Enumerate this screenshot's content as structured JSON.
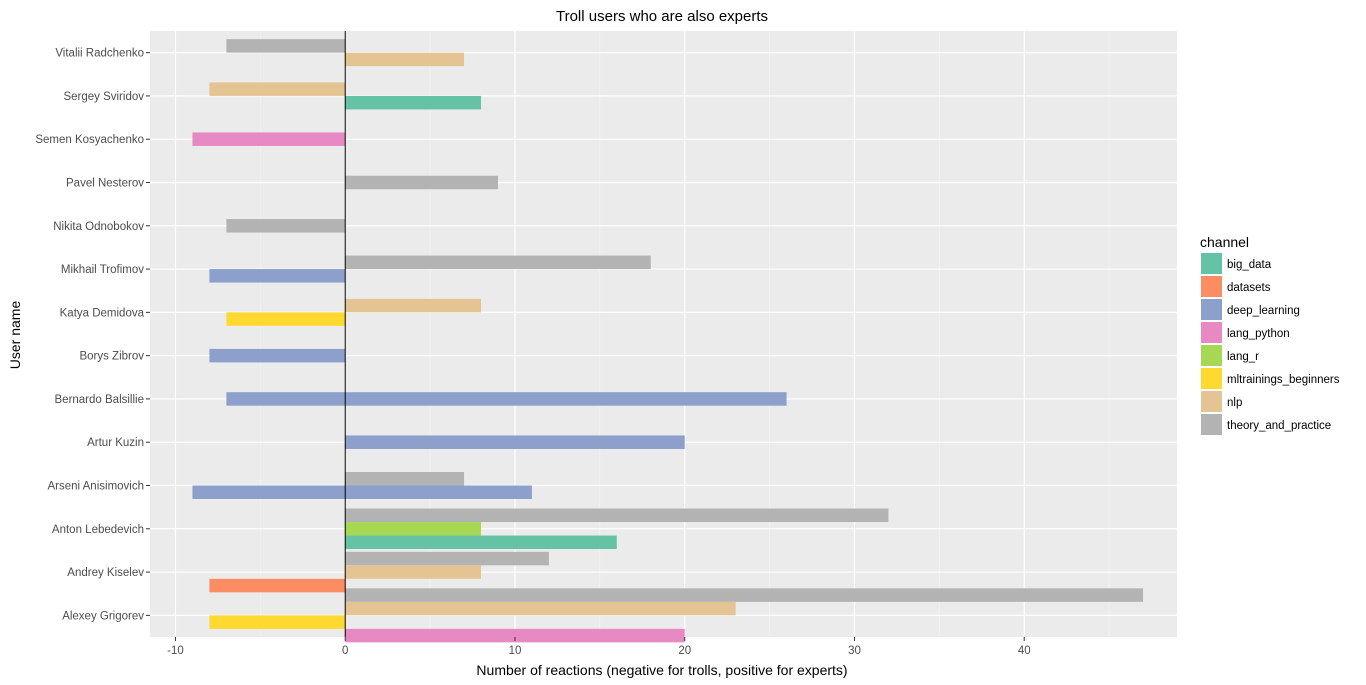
{
  "chart_data": {
    "type": "bar",
    "orientation": "horizontal",
    "title": "Troll users who are also experts",
    "xlabel": "Number of reactions (negative for trolls, positive for experts)",
    "ylabel": "User name",
    "xlim": [
      -11.5,
      49
    ],
    "xticks": [
      -10,
      0,
      10,
      20,
      30,
      40
    ],
    "grid": true,
    "legend": {
      "title": "channel",
      "position": "right",
      "entries": [
        {
          "name": "big_data",
          "color": "#66c2a5"
        },
        {
          "name": "datasets",
          "color": "#fc8d62"
        },
        {
          "name": "deep_learning",
          "color": "#8da0cb"
        },
        {
          "name": "lang_python",
          "color": "#e78ac3"
        },
        {
          "name": "lang_r",
          "color": "#a6d854"
        },
        {
          "name": "mltrainings_beginners",
          "color": "#ffd92f"
        },
        {
          "name": "nlp",
          "color": "#e5c494"
        },
        {
          "name": "theory_and_practice",
          "color": "#b3b3b3"
        }
      ]
    },
    "categories": [
      "Alexey Grigorev",
      "Andrey Kiselev",
      "Anton Lebedevich",
      "Arseni Anisimovich",
      "Artur Kuzin",
      "Bernardo Balsillie",
      "Borys Zibrov",
      "Katya Demidova",
      "Mikhail Trofimov",
      "Nikita Odnobokov",
      "Pavel Nesterov",
      "Semen Kosyachenko",
      "Sergey Sviridov",
      "Vitalii Radchenko"
    ],
    "bars": [
      {
        "user": "Alexey Grigorev",
        "channel": "theory_and_practice",
        "value": 47
      },
      {
        "user": "Alexey Grigorev",
        "channel": "nlp",
        "value": 23
      },
      {
        "user": "Alexey Grigorev",
        "channel": "lang_python",
        "value": 20
      },
      {
        "user": "Alexey Grigorev",
        "channel": "mltrainings_beginners",
        "value": -8
      },
      {
        "user": "Andrey Kiselev",
        "channel": "theory_and_practice",
        "value": 12
      },
      {
        "user": "Andrey Kiselev",
        "channel": "nlp",
        "value": 8
      },
      {
        "user": "Andrey Kiselev",
        "channel": "datasets",
        "value": -8
      },
      {
        "user": "Anton Lebedevich",
        "channel": "theory_and_practice",
        "value": 32
      },
      {
        "user": "Anton Lebedevich",
        "channel": "lang_r",
        "value": 8
      },
      {
        "user": "Anton Lebedevich",
        "channel": "big_data",
        "value": 16
      },
      {
        "user": "Arseni Anisimovich",
        "channel": "theory_and_practice",
        "value": 7
      },
      {
        "user": "Arseni Anisimovich",
        "channel": "deep_learning",
        "value": 11
      },
      {
        "user": "Arseni Anisimovich",
        "channel": "deep_learning",
        "value": -9
      },
      {
        "user": "Artur Kuzin",
        "channel": "deep_learning",
        "value": 20
      },
      {
        "user": "Bernardo Balsillie",
        "channel": "deep_learning",
        "value": 26
      },
      {
        "user": "Bernardo Balsillie",
        "channel": "deep_learning",
        "value": -7
      },
      {
        "user": "Borys Zibrov",
        "channel": "deep_learning",
        "value": -8
      },
      {
        "user": "Katya Demidova",
        "channel": "nlp",
        "value": 8
      },
      {
        "user": "Katya Demidova",
        "channel": "mltrainings_beginners",
        "value": -7
      },
      {
        "user": "Mikhail Trofimov",
        "channel": "theory_and_practice",
        "value": 18
      },
      {
        "user": "Mikhail Trofimov",
        "channel": "deep_learning",
        "value": -8
      },
      {
        "user": "Nikita Odnobokov",
        "channel": "theory_and_practice",
        "value": -7
      },
      {
        "user": "Pavel Nesterov",
        "channel": "theory_and_practice",
        "value": 9
      },
      {
        "user": "Semen Kosyachenko",
        "channel": "lang_python",
        "value": -9
      },
      {
        "user": "Sergey Sviridov",
        "channel": "nlp",
        "value": -8
      },
      {
        "user": "Sergey Sviridov",
        "channel": "big_data",
        "value": 8
      },
      {
        "user": "Vitalii Radchenko",
        "channel": "theory_and_practice",
        "value": -7
      },
      {
        "user": "Vitalii Radchenko",
        "channel": "nlp",
        "value": 7
      }
    ]
  }
}
